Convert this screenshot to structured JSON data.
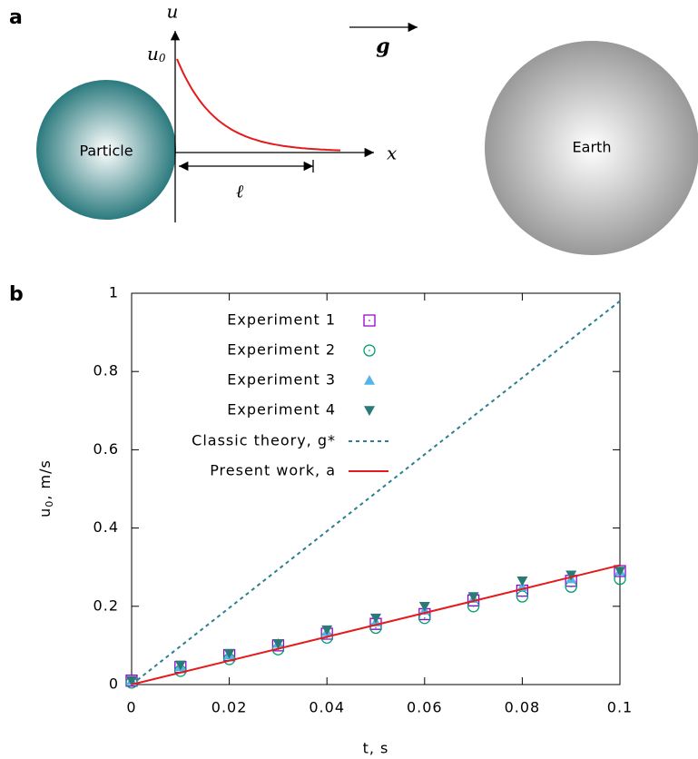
{
  "diagram": {
    "panel_label": "a",
    "particle": "Particle",
    "earth": "Earth",
    "u_axis": "u",
    "x_axis": "x",
    "u0": {
      "base": "u",
      "sub": "0"
    },
    "length": "ℓ",
    "gravity": "g"
  },
  "chart_data": {
    "type": "scatter",
    "panel_label": "b",
    "xlabel": "t, s",
    "ylabel": {
      "base": "u",
      "sub": "0",
      "rest": ", m/s"
    },
    "xlim": [
      0,
      0.1
    ],
    "ylim": [
      0,
      1
    ],
    "xticks": [
      0,
      0.02,
      0.04,
      0.06,
      0.08,
      0.1
    ],
    "yticks": [
      0,
      0.2,
      0.4,
      0.6,
      0.8,
      1
    ],
    "series": [
      {
        "name": "Experiment 1",
        "color": "#9400d3",
        "marker": "square",
        "x": [
          0,
          0.01,
          0.02,
          0.03,
          0.04,
          0.05,
          0.06,
          0.07,
          0.08,
          0.09,
          0.1
        ],
        "values": [
          0.01,
          0.045,
          0.075,
          0.1,
          0.13,
          0.155,
          0.18,
          0.215,
          0.24,
          0.265,
          0.29
        ]
      },
      {
        "name": "Experiment 2",
        "color": "#009e73",
        "marker": "circle",
        "x": [
          0,
          0.01,
          0.02,
          0.03,
          0.04,
          0.05,
          0.06,
          0.07,
          0.08,
          0.09,
          0.1
        ],
        "values": [
          0.005,
          0.035,
          0.065,
          0.09,
          0.12,
          0.145,
          0.17,
          0.2,
          0.225,
          0.25,
          0.27
        ]
      },
      {
        "name": "Experiment 3",
        "color": "#56b4e9",
        "marker": "triangle-up",
        "x": [
          0,
          0.01,
          0.02,
          0.03,
          0.04,
          0.05,
          0.06,
          0.07,
          0.08,
          0.09,
          0.1
        ],
        "values": [
          0.01,
          0.045,
          0.075,
          0.105,
          0.135,
          0.16,
          0.19,
          0.22,
          0.25,
          0.27,
          0.29
        ]
      },
      {
        "name": "Experiment 4",
        "color": "#2b7a78",
        "marker": "triangle-down",
        "x": [
          0,
          0.01,
          0.02,
          0.03,
          0.04,
          0.05,
          0.06,
          0.07,
          0.08,
          0.09,
          0.1
        ],
        "values": [
          0.01,
          0.05,
          0.08,
          0.105,
          0.14,
          0.17,
          0.2,
          0.225,
          0.265,
          0.28,
          0.29
        ]
      },
      {
        "name": "Classic theory, g*",
        "color": "#2a7f8f",
        "marker": "dashed-line",
        "x": [
          0,
          0.1
        ],
        "values": [
          0,
          0.98
        ]
      },
      {
        "name": "Present work, a",
        "color": "#e41a1c",
        "marker": "line",
        "x": [
          0,
          0.1
        ],
        "values": [
          0,
          0.305
        ]
      }
    ]
  }
}
